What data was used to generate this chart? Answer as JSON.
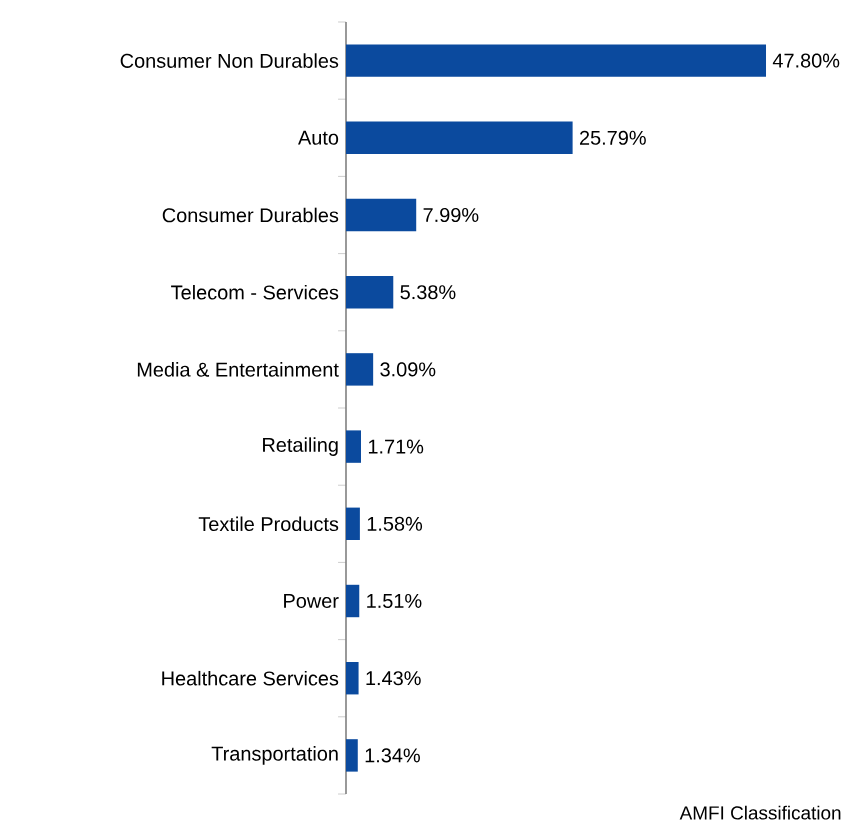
{
  "chart_data": {
    "type": "bar",
    "orientation": "horizontal",
    "relative": false,
    "categories": [
      "Consumer Non Durables",
      "Auto",
      "Consumer Durables",
      "Telecom - Services",
      "Media & Entertainment",
      "Retailing",
      "Textile Products",
      "Power",
      "Healthcare Services",
      "Transportation"
    ],
    "values": [
      47.8,
      25.79,
      7.99,
      5.38,
      3.09,
      1.71,
      1.58,
      1.51,
      1.43,
      1.34
    ],
    "value_labels": [
      "47.80%",
      "25.79%",
      "7.99%",
      "5.38%",
      "3.09%",
      "1.71%",
      "1.58%",
      "1.51%",
      "1.43%",
      "1.34%"
    ],
    "color": "#0b4a9e",
    "annotations": [
      "AMFI  Classification"
    ]
  }
}
